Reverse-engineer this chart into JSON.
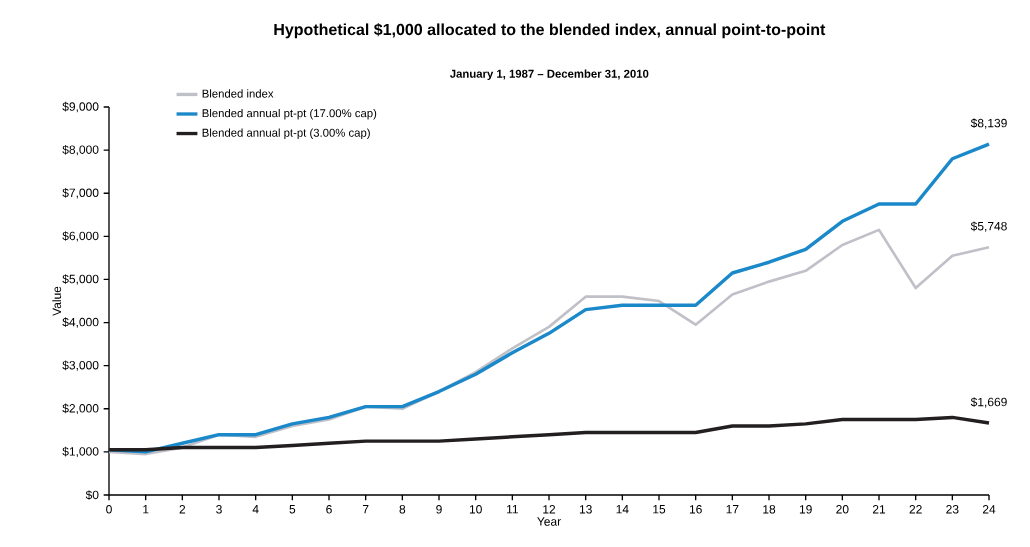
{
  "chart_data": {
    "type": "line",
    "title": "Hypothetical $1,000 allocated to the blended index, annual point-to-point",
    "subtitle": "January 1, 1987 – December 31, 2010",
    "xlabel": "Year",
    "ylabel": "Value",
    "x": [
      0,
      1,
      2,
      3,
      4,
      5,
      6,
      7,
      8,
      9,
      10,
      11,
      12,
      13,
      14,
      15,
      16,
      17,
      18,
      19,
      20,
      21,
      22,
      23,
      24
    ],
    "xlim": [
      0,
      24
    ],
    "xticks": [
      0,
      1,
      2,
      3,
      4,
      5,
      6,
      7,
      8,
      9,
      10,
      11,
      12,
      13,
      14,
      15,
      16,
      17,
      18,
      19,
      20,
      21,
      22,
      23,
      24
    ],
    "ylim": [
      0,
      9000
    ],
    "yticks": [
      {
        "value": 0,
        "label": "$0"
      },
      {
        "value": 1000,
        "label": "$1,000"
      },
      {
        "value": 2000,
        "label": "$2,000"
      },
      {
        "value": 3000,
        "label": "$3,000"
      },
      {
        "value": 4000,
        "label": "$4,000"
      },
      {
        "value": 5000,
        "label": "$5,000"
      },
      {
        "value": 6000,
        "label": "$6,000"
      },
      {
        "value": 7000,
        "label": "$7,000"
      },
      {
        "value": 8000,
        "label": "$8,000"
      },
      {
        "value": 9000,
        "label": "$9,000"
      }
    ],
    "legend": "top left",
    "line_style": "solid",
    "series": [
      {
        "name": "Blended index",
        "color": "#c0c0c8",
        "values": [
          1000,
          950,
          1100,
          1400,
          1350,
          1600,
          1750,
          2050,
          2000,
          2400,
          2850,
          3400,
          3900,
          4600,
          4600,
          4500,
          3950,
          4650,
          4950,
          5200,
          5800,
          6150,
          4800,
          5550,
          5748
        ],
        "value_labels": [
          null,
          null,
          null,
          null,
          null,
          null,
          null,
          null,
          null,
          null,
          null,
          null,
          null,
          null,
          null,
          null,
          null,
          null,
          null,
          null,
          null,
          null,
          null,
          null,
          "$5,748"
        ]
      },
      {
        "name": "Blended annual pt-pt (17.00% cap)",
        "color": "#1a88c9",
        "values": [
          1050,
          1000,
          1200,
          1400,
          1400,
          1650,
          1800,
          2050,
          2050,
          2400,
          2800,
          3300,
          3750,
          4300,
          4400,
          4400,
          4400,
          5150,
          5400,
          5700,
          6350,
          6750,
          6750,
          7800,
          8139
        ],
        "value_labels": [
          null,
          null,
          null,
          null,
          null,
          null,
          null,
          null,
          null,
          null,
          null,
          null,
          null,
          null,
          null,
          null,
          null,
          null,
          null,
          null,
          null,
          null,
          null,
          null,
          "$8,139"
        ]
      },
      {
        "name": "Blended annual pt-pt (3.00% cap)",
        "color": "#231f20",
        "values": [
          1050,
          1050,
          1100,
          1100,
          1100,
          1150,
          1200,
          1250,
          1250,
          1250,
          1300,
          1350,
          1400,
          1450,
          1450,
          1450,
          1450,
          1600,
          1600,
          1650,
          1750,
          1750,
          1750,
          1800,
          1669
        ],
        "value_labels": [
          null,
          null,
          null,
          null,
          null,
          null,
          null,
          null,
          null,
          null,
          null,
          null,
          null,
          null,
          null,
          null,
          null,
          null,
          null,
          null,
          null,
          null,
          null,
          null,
          "$1,669"
        ]
      }
    ]
  }
}
